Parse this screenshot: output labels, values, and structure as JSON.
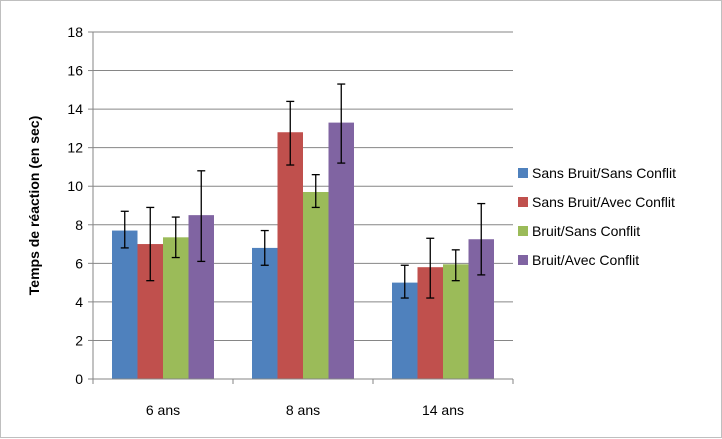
{
  "chart_data": {
    "type": "bar",
    "title": "",
    "xlabel": "",
    "ylabel": "Temps de réaction (en sec)",
    "categories": [
      "6 ans",
      "8 ans",
      "14 ans"
    ],
    "ylim": [
      0,
      18
    ],
    "yticks": [
      0,
      2,
      4,
      6,
      8,
      10,
      12,
      14,
      16,
      18
    ],
    "grid": true,
    "legend_position": "right",
    "series": [
      {
        "name": "Sans Bruit/Sans Conflit",
        "color": "#4f81bd",
        "values": [
          7.7,
          6.8,
          5.0
        ],
        "error_low": [
          6.8,
          5.9,
          4.2
        ],
        "error_high": [
          8.7,
          7.7,
          5.9
        ]
      },
      {
        "name": "Sans Bruit/Avec Conflit",
        "color": "#c0504d",
        "values": [
          7.0,
          12.8,
          5.8
        ],
        "error_low": [
          5.1,
          11.1,
          4.2
        ],
        "error_high": [
          8.9,
          14.4,
          7.3
        ]
      },
      {
        "name": "Bruit/Sans Conflit",
        "color": "#9bbb59",
        "values": [
          7.35,
          9.7,
          5.95
        ],
        "error_low": [
          6.3,
          8.9,
          5.1
        ],
        "error_high": [
          8.4,
          10.6,
          6.7
        ]
      },
      {
        "name": "Bruit/Avec Conflit",
        "color": "#8064a2",
        "values": [
          8.5,
          13.3,
          7.25
        ],
        "error_low": [
          6.1,
          11.2,
          5.4
        ],
        "error_high": [
          10.8,
          15.3,
          9.1
        ]
      }
    ]
  }
}
